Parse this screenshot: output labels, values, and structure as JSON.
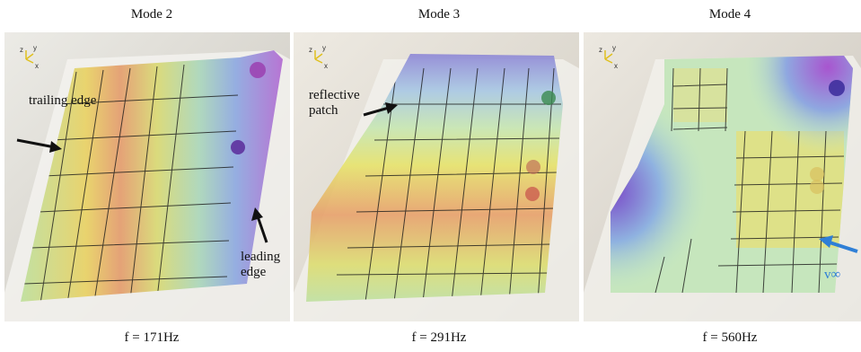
{
  "panels": [
    {
      "mode_label": "Mode 2",
      "frequency": "f = 171Hz",
      "axis_labels": {
        "z": "z",
        "y": "y",
        "x": "x"
      },
      "annotations": {
        "trailing": "trailing edge",
        "leading": "leading edge"
      }
    },
    {
      "mode_label": "Mode 3",
      "frequency": "f = 291Hz",
      "axis_labels": {
        "z": "z",
        "y": "y",
        "x": "x"
      },
      "annotations": {
        "reflective": "reflective patch"
      }
    },
    {
      "mode_label": "Mode 4",
      "frequency": "f = 560Hz",
      "axis_labels": {
        "z": "z",
        "y": "y",
        "x": "x"
      },
      "annotations": {
        "velocity": "v∞"
      }
    }
  ],
  "colors": {
    "background": "#d9d6cf",
    "grid": "#1a1a1a",
    "yellow": "#e6e060",
    "orange": "#e0906a",
    "green": "#b7dca8",
    "blue": "#8aa7e2",
    "purple": "#b36ad3",
    "arrow_blue": "#2f7fd6"
  }
}
